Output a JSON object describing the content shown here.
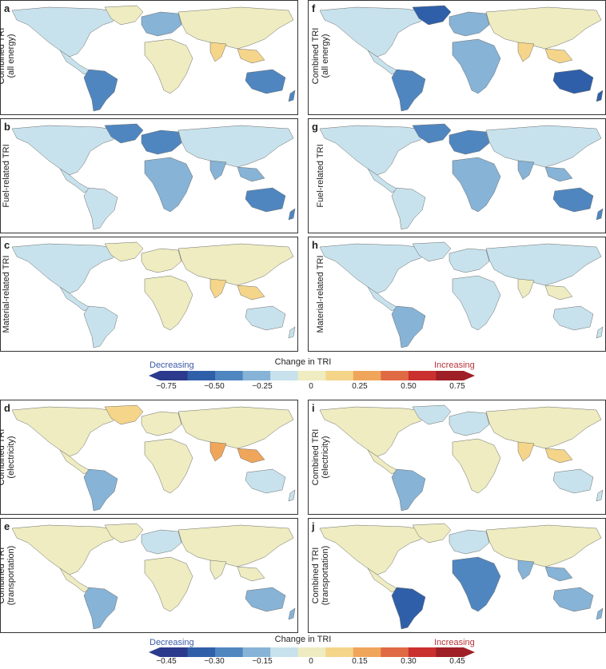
{
  "panels": [
    {
      "letter": "a",
      "ylabel1": "Combined TRI",
      "ylabel2": "(all energy)"
    },
    {
      "letter": "b",
      "ylabel1": "Fuel-related TRI",
      "ylabel2": ""
    },
    {
      "letter": "c",
      "ylabel1": "Material-related TRI",
      "ylabel2": ""
    },
    {
      "letter": "f",
      "ylabel1": "Combined TRI",
      "ylabel2": "(all energy)"
    },
    {
      "letter": "g",
      "ylabel1": "Fuel-related TRI",
      "ylabel2": ""
    },
    {
      "letter": "h",
      "ylabel1": "Material-related TRI",
      "ylabel2": ""
    },
    {
      "letter": "d",
      "ylabel1": "Combined TRI",
      "ylabel2": "(electricity)"
    },
    {
      "letter": "e",
      "ylabel1": "Combined TRI",
      "ylabel2": "(transportation)"
    },
    {
      "letter": "i",
      "ylabel1": "Combined TRI",
      "ylabel2": "(electricity)"
    },
    {
      "letter": "j",
      "ylabel1": "Combined TRI",
      "ylabel2": "(transportation)"
    }
  ],
  "legend_top": {
    "title": "Change in TRI",
    "decreasing": "Decreasing",
    "increasing": "Increasing",
    "ticks": [
      "−0.75",
      "−0.50",
      "−0.25",
      "0",
      "0.25",
      "0.50",
      "0.75"
    ]
  },
  "legend_bottom": {
    "title": "Change in TRI",
    "decreasing": "Decreasing",
    "increasing": "Increasing",
    "ticks": [
      "−0.45",
      "−0.30",
      "−0.15",
      "0",
      "0.15",
      "0.30",
      "0.45"
    ]
  },
  "colors": [
    "#2b3a8c",
    "#2f5fa8",
    "#4f86c0",
    "#86b3d6",
    "#c7e2ec",
    "#eeecc0",
    "#f4d58a",
    "#efa65b",
    "#e06a44",
    "#c9302e",
    "#9e1f26"
  ],
  "map_fills": {
    "a": {
      "na": "#c7e2ec",
      "greenland": "#eeecc0",
      "sa": "#4f86c0",
      "europe": "#86b3d6",
      "africa": "#eeecc0",
      "asia": "#eeecc0",
      "india": "#f4d58a",
      "australia": "#4f86c0"
    },
    "b": {
      "na": "#c7e2ec",
      "greenland": "#4f86c0",
      "sa": "#c7e2ec",
      "europe": "#4f86c0",
      "africa": "#86b3d6",
      "asia": "#c7e2ec",
      "india": "#86b3d6",
      "australia": "#4f86c0"
    },
    "c": {
      "na": "#c7e2ec",
      "greenland": "#eeecc0",
      "sa": "#c7e2ec",
      "europe": "#eeecc0",
      "africa": "#eeecc0",
      "asia": "#eeecc0",
      "india": "#f4d58a",
      "australia": "#c7e2ec"
    },
    "f": {
      "na": "#c7e2ec",
      "greenland": "#2f5fa8",
      "sa": "#4f86c0",
      "europe": "#86b3d6",
      "africa": "#86b3d6",
      "asia": "#eeecc0",
      "india": "#f4d58a",
      "australia": "#2f5fa8"
    },
    "g": {
      "na": "#c7e2ec",
      "greenland": "#4f86c0",
      "sa": "#c7e2ec",
      "europe": "#4f86c0",
      "africa": "#86b3d6",
      "asia": "#c7e2ec",
      "india": "#86b3d6",
      "australia": "#4f86c0"
    },
    "h": {
      "na": "#c7e2ec",
      "greenland": "#c7e2ec",
      "sa": "#86b3d6",
      "europe": "#c7e2ec",
      "africa": "#c7e2ec",
      "asia": "#c7e2ec",
      "india": "#eeecc0",
      "australia": "#c7e2ec"
    },
    "d": {
      "na": "#eeecc0",
      "greenland": "#f4d58a",
      "sa": "#86b3d6",
      "europe": "#eeecc0",
      "africa": "#eeecc0",
      "asia": "#eeecc0",
      "india": "#efa65b",
      "australia": "#c7e2ec"
    },
    "e": {
      "na": "#eeecc0",
      "greenland": "#eeecc0",
      "sa": "#86b3d6",
      "europe": "#c7e2ec",
      "africa": "#eeecc0",
      "asia": "#eeecc0",
      "india": "#eeecc0",
      "australia": "#86b3d6"
    },
    "i": {
      "na": "#eeecc0",
      "greenland": "#c7e2ec",
      "sa": "#86b3d6",
      "europe": "#c7e2ec",
      "africa": "#eeecc0",
      "asia": "#eeecc0",
      "india": "#f4d58a",
      "australia": "#c7e2ec"
    },
    "j": {
      "na": "#eeecc0",
      "greenland": "#eeecc0",
      "sa": "#2f5fa8",
      "europe": "#c7e2ec",
      "africa": "#4f86c0",
      "asia": "#eeecc0",
      "india": "#86b3d6",
      "australia": "#86b3d6"
    }
  }
}
